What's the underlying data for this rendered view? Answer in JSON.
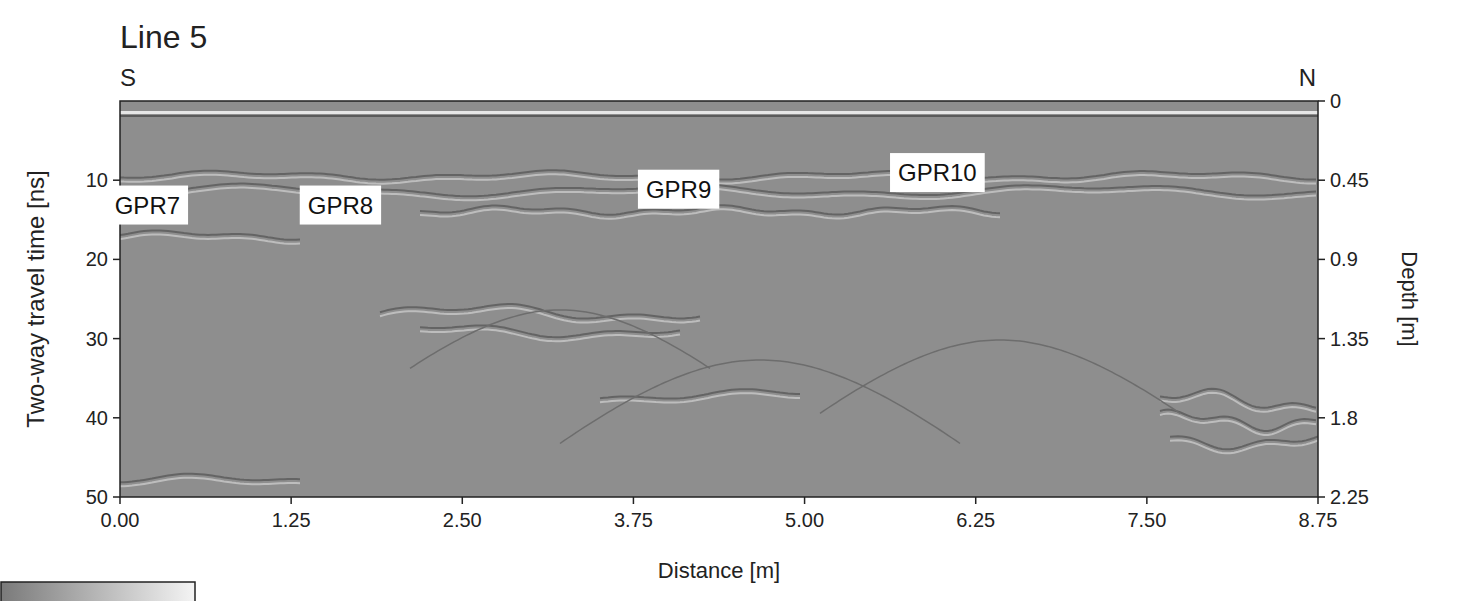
{
  "chart_data": {
    "type": "radargram",
    "title": "Line 5",
    "direction_labels": [
      "S",
      "N"
    ],
    "x_label": "Distance [m]",
    "y_label": "Two-way travel time [ns]",
    "y2_label": "Depth [m]",
    "xlim": [
      0,
      8.75
    ],
    "xticks": [
      {
        "value": 0,
        "label": "0.00"
      },
      1.25,
      {
        "value": 2.5,
        "label": "2.50"
      },
      3.75,
      {
        "value": 5,
        "label": "5.00"
      },
      6.25,
      {
        "value": 7.5,
        "label": "7.50"
      },
      8.75
    ],
    "ylim": [
      0,
      50
    ],
    "yticks": [
      10,
      20,
      30,
      40,
      50
    ],
    "y2lim": [
      0,
      2.25
    ],
    "y2ticks": [
      0,
      0.45,
      0.9,
      1.35,
      1.8,
      2.25
    ],
    "annotations": [
      {
        "text": "GPR7",
        "x": 0.2,
        "y": 13.2
      },
      {
        "text": "GPR8",
        "x": 1.61,
        "y": 13.2
      },
      {
        "text": "GPR9",
        "x": 4.08,
        "y": 11.2
      },
      {
        "text": "GPR10",
        "x": 5.97,
        "y": 9.1
      }
    ]
  }
}
